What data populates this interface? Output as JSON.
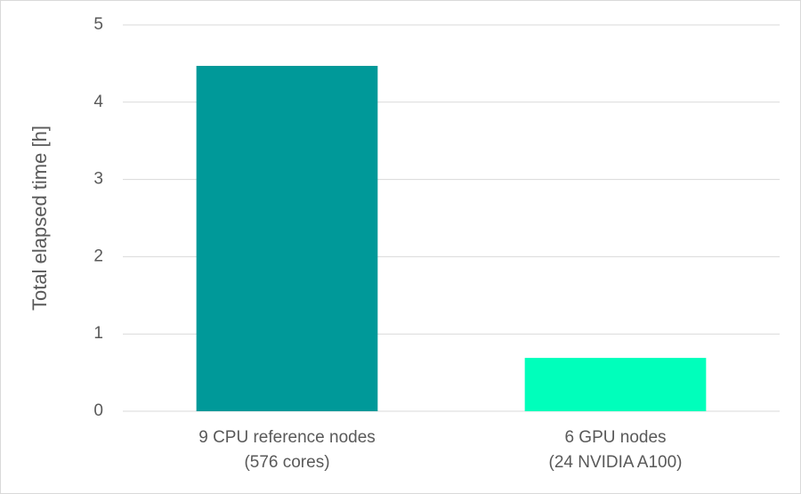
{
  "chart_data": {
    "type": "bar",
    "y_label": "Total elapsed time [h]",
    "categories": [
      [
        "9 CPU reference nodes",
        "(576 cores)"
      ],
      [
        "6 GPU nodes",
        "(24 NVIDIA A100)"
      ]
    ],
    "values": [
      4.47,
      0.69
    ],
    "colors": [
      "#009999",
      "#00ffbb"
    ],
    "ylim": [
      0,
      5
    ],
    "yticks": [
      0,
      1,
      2,
      3,
      4,
      5
    ],
    "grid": true
  }
}
